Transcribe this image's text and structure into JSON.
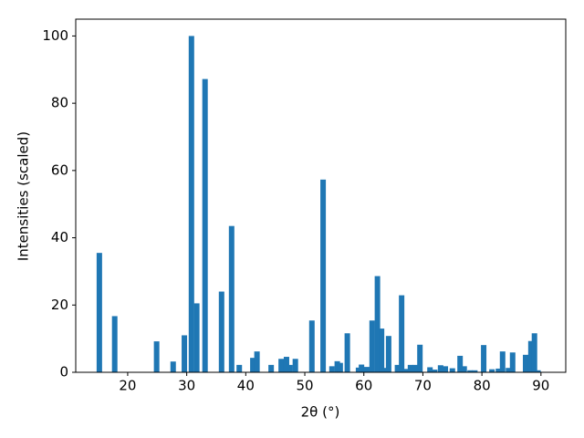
{
  "chart_data": {
    "type": "bar",
    "xlabel": "2θ (°)",
    "ylabel": "Intensities (scaled)",
    "color": "#1f77b4",
    "x": [
      15.2,
      17.8,
      24.9,
      27.7,
      29.6,
      30.8,
      31.7,
      33.1,
      35.9,
      37.6,
      38.9,
      41.2,
      41.9,
      44.3,
      46.0,
      46.9,
      47.5,
      48.4,
      51.2,
      53.1,
      54.6,
      55.5,
      56.0,
      57.2,
      59.1,
      59.6,
      60.5,
      61.4,
      62.3,
      63.0,
      63.4,
      64.2,
      65.7,
      66.4,
      67.0,
      67.9,
      68.7,
      69.5,
      71.2,
      72.0,
      73.0,
      73.8,
      75.0,
      76.3,
      77.0,
      78.0,
      78.8,
      80.3,
      81.7,
      82.8,
      83.5,
      84.5,
      85.2,
      87.4,
      88.3,
      88.9,
      89.5
    ],
    "values": [
      35.5,
      16.7,
      9.2,
      3.2,
      11,
      100,
      20.5,
      87.2,
      24,
      43.5,
      2.2,
      4.3,
      6.2,
      2.2,
      4,
      4.6,
      2.2,
      4,
      15.4,
      57.3,
      1.8,
      3.3,
      2.8,
      11.6,
      1.4,
      2.3,
      1.6,
      15.4,
      28.6,
      13,
      1.3,
      10.8,
      2.2,
      22.9,
      1,
      2.2,
      2.2,
      8.2,
      1.5,
      0.8,
      2.1,
      1.8,
      1.2,
      4.9,
      1.8,
      0.6,
      0.6,
      8.1,
      0.9,
      1.1,
      6.2,
      1.3,
      5.9,
      5.2,
      9.3,
      11.6,
      0.6
    ],
    "xlim": [
      11.2,
      94.2
    ],
    "xticks": [
      20,
      30,
      40,
      50,
      60,
      70,
      80,
      90
    ],
    "ylim": [
      0,
      105
    ],
    "yticks": [
      0,
      20,
      40,
      60,
      80,
      100
    ]
  }
}
